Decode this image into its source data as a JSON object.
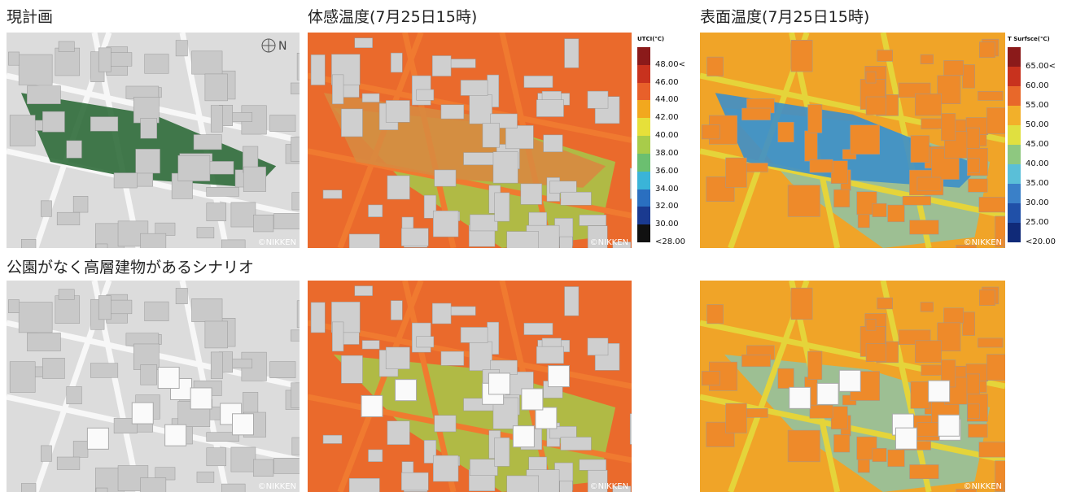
{
  "labels": {
    "current_plan": "現計画",
    "utci_header": "体感温度(7月25日15時)",
    "surface_header": "表面温度(7月25日15時)",
    "scenario": "公園がなく高層建物があるシナリオ",
    "north": "N",
    "credit": "©NIKKEN"
  },
  "legend_utci": {
    "title": "UTCI(℃)",
    "items": [
      "48.00<",
      "46.00",
      "44.00",
      "42.00",
      "40.00",
      "38.00",
      "36.00",
      "34.00",
      "32.00",
      "30.00",
      "<28.00"
    ]
  },
  "legend_surface": {
    "title": "T Surfsce(℃)",
    "items": [
      "65.00<",
      "60.00",
      "55.00",
      "50.00",
      "45.00",
      "40.00",
      "35.00",
      "30.00",
      "25.00",
      "<20.00"
    ]
  }
}
